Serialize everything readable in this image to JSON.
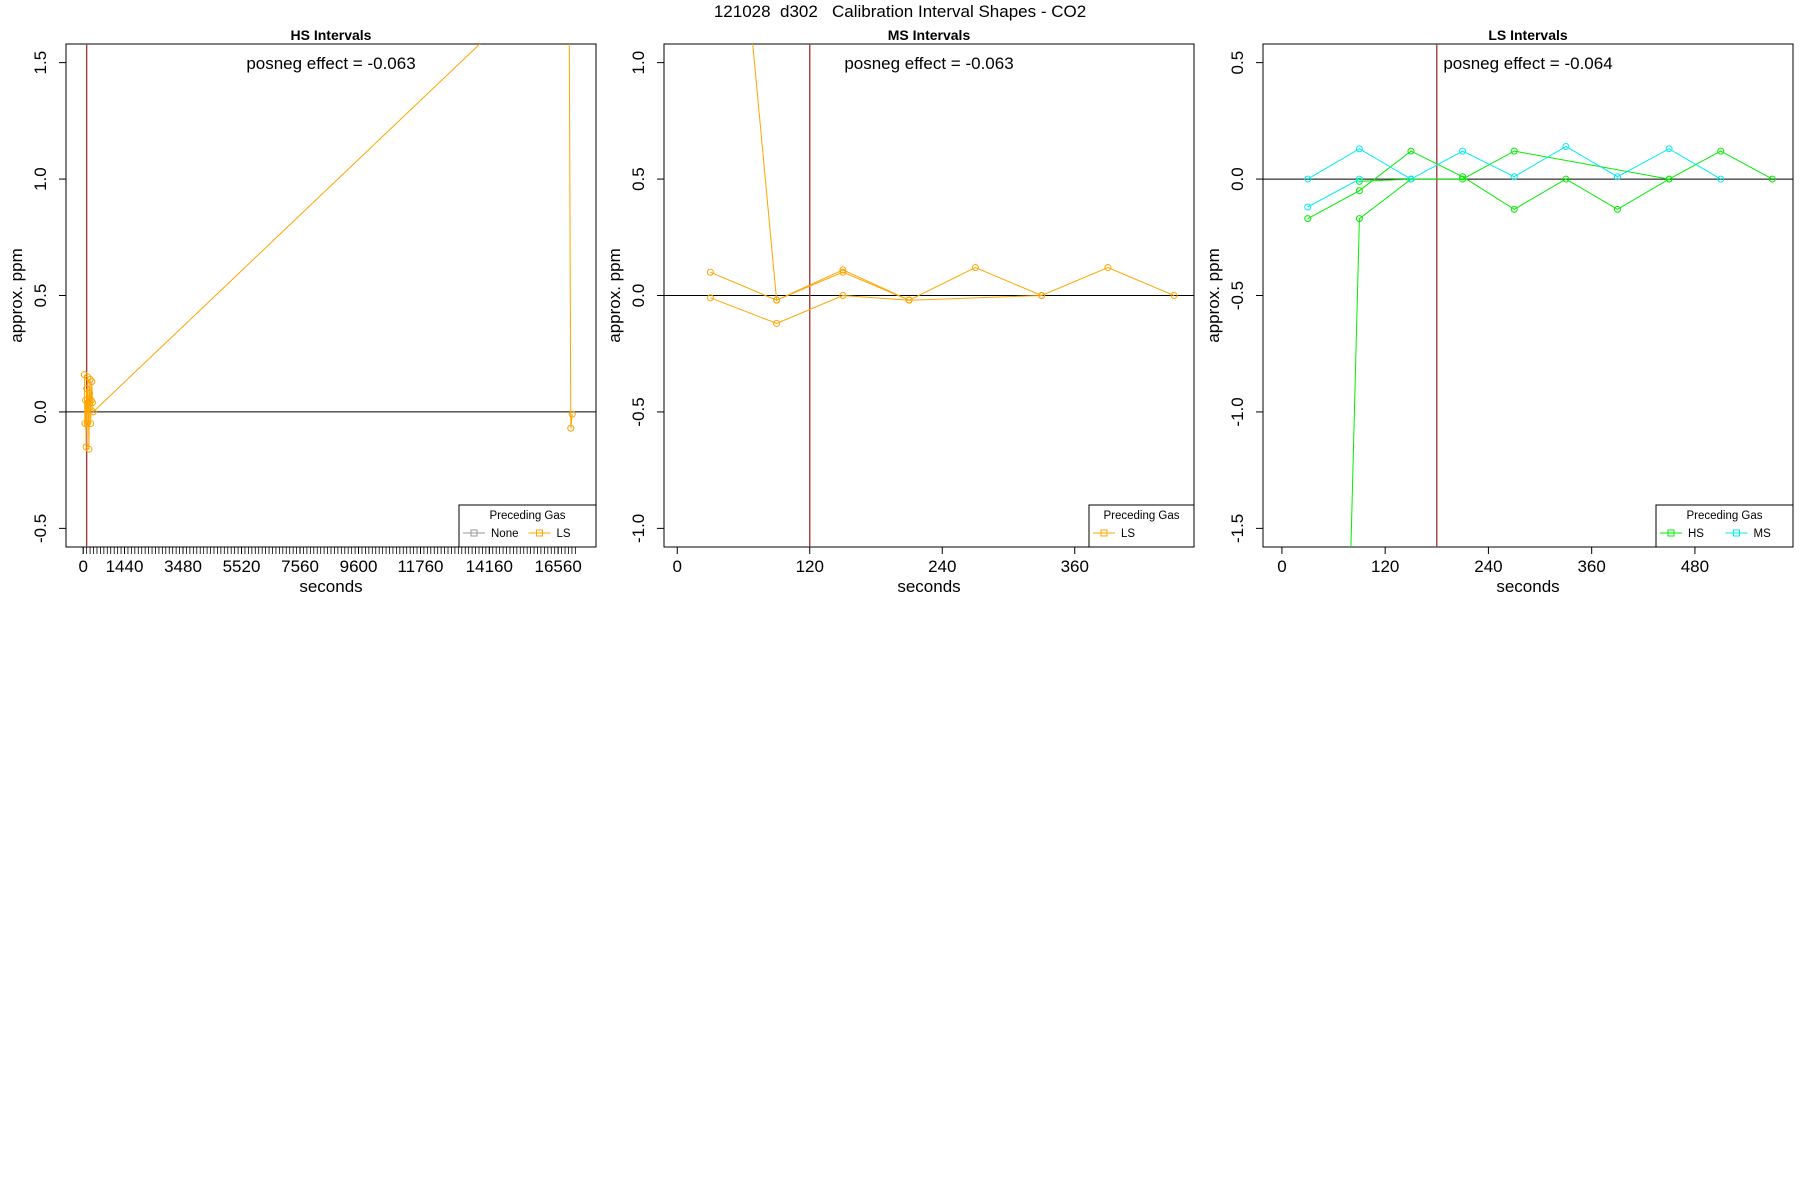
{
  "title": "121028  d302   Calibration Interval Shapes - CO2",
  "colors": {
    "None": "#999999",
    "LS": "#FFA500",
    "HS": "#00EE00",
    "MS": "#00EEEE",
    "vline": "#a0403c"
  },
  "chart_data": [
    {
      "type": "line",
      "title": "HS Intervals",
      "xlabel": "seconds",
      "ylabel": "approx. ppm",
      "xlim": [
        -600,
        17880
      ],
      "ylim": [
        -0.58,
        1.58
      ],
      "xticks": [
        0,
        1440,
        3480,
        5520,
        7560,
        9600,
        11760,
        14160,
        16560
      ],
      "minor_ticks": {
        "start": 0,
        "end": 17160,
        "step": 120
      },
      "yticks": [
        -0.5,
        0.0,
        0.5,
        1.0,
        1.5
      ],
      "ytick_labels": [
        "-0.5",
        "0.0",
        "0.5",
        "1.0",
        "1.5"
      ],
      "vline": 120,
      "hline": 0,
      "annotation": "posneg effect = -0.063",
      "legend": {
        "title": "Preceding Gas",
        "position": "bottom-right",
        "entries": [
          "None",
          "LS"
        ]
      },
      "series": [
        {
          "name": "LS",
          "points": [
            {
              "x": 40,
              "y": 0.16
            },
            {
              "x": 60,
              "y": -0.05
            },
            {
              "x": 80,
              "y": 0.05
            },
            {
              "x": 100,
              "y": -0.15
            },
            {
              "x": 120,
              "y": 0.1
            },
            {
              "x": 140,
              "y": -0.05
            },
            {
              "x": 160,
              "y": 0.15
            },
            {
              "x": 180,
              "y": 0.02
            },
            {
              "x": 200,
              "y": -0.16
            },
            {
              "x": 220,
              "y": 0.08
            },
            {
              "x": 240,
              "y": 0.14
            },
            {
              "x": 260,
              "y": -0.05
            },
            {
              "x": 280,
              "y": 0.05
            },
            {
              "x": 300,
              "y": 0.13
            },
            {
              "x": 320,
              "y": 0.04
            },
            {
              "x": 350,
              "y": 0.0
            },
            {
              "x": 14000,
              "y": 1.6
            },
            {
              "x": 16950,
              "y": 1.6
            },
            {
              "x": 17000,
              "y": -0.07
            },
            {
              "x": 17050,
              "y": -0.01
            }
          ]
        }
      ]
    },
    {
      "type": "line",
      "title": "MS Intervals",
      "xlabel": "seconds",
      "ylabel": "approx. ppm",
      "xlim": [
        -12,
        468
      ],
      "ylim": [
        -1.08,
        1.08
      ],
      "xticks": [
        0,
        120,
        240,
        360
      ],
      "yticks": [
        -1.0,
        -0.5,
        0.0,
        0.5,
        1.0
      ],
      "ytick_labels": [
        "-1.0",
        "-0.5",
        "0.0",
        "0.5",
        "1.0"
      ],
      "vline": 120,
      "hline": 0,
      "annotation": "posneg effect = -0.063",
      "legend": {
        "title": "Preceding Gas",
        "position": "bottom-right",
        "entries": [
          "LS"
        ]
      },
      "series": [
        {
          "name": "LS",
          "points": [
            {
              "x": 68,
              "y": 1.1
            },
            {
              "x": 90,
              "y": -0.02
            },
            {
              "x": 150,
              "y": 0.1
            },
            {
              "x": 210,
              "y": -0.02
            },
            {
              "x": 270,
              "y": 0.12
            },
            {
              "x": 330,
              "y": 0.0
            },
            {
              "x": 390,
              "y": 0.12
            },
            {
              "x": 450,
              "y": 0.0
            }
          ]
        },
        {
          "name": "LS",
          "points": [
            {
              "x": 30,
              "y": 0.1
            },
            {
              "x": 90,
              "y": -0.02
            },
            {
              "x": 150,
              "y": 0.11
            },
            {
              "x": 210,
              "y": -0.02
            }
          ]
        },
        {
          "name": "LS",
          "points": [
            {
              "x": 30,
              "y": -0.01
            },
            {
              "x": 90,
              "y": -0.12
            },
            {
              "x": 150,
              "y": 0.0
            },
            {
              "x": 210,
              "y": -0.02
            },
            {
              "x": 330,
              "y": 0.0
            }
          ]
        }
      ]
    },
    {
      "type": "line",
      "title": "LS Intervals",
      "xlabel": "seconds",
      "ylabel": "approx. ppm",
      "xlim": [
        -22,
        594
      ],
      "ylim": [
        -1.58,
        0.58
      ],
      "xticks": [
        0,
        120,
        240,
        360,
        480
      ],
      "yticks": [
        -1.5,
        -1.0,
        -0.5,
        0.0,
        0.5
      ],
      "ytick_labels": [
        "-1.5",
        "-1.0",
        "-0.5",
        "0.0",
        "0.5"
      ],
      "vline": 180,
      "hline": 0,
      "annotation": "posneg effect = -0.064",
      "legend": {
        "title": "Preceding Gas",
        "position": "bottom-right",
        "entries": [
          "HS",
          "MS"
        ]
      },
      "series": [
        {
          "name": "HS",
          "points": [
            {
              "x": 80,
              "y": -1.6
            },
            {
              "x": 90,
              "y": -0.17
            },
            {
              "x": 150,
              "y": 0.0
            },
            {
              "x": 210,
              "y": 0.0
            },
            {
              "x": 270,
              "y": 0.12
            },
            {
              "x": 450,
              "y": 0.0
            }
          ]
        },
        {
          "name": "HS",
          "points": [
            {
              "x": 30,
              "y": -0.17
            },
            {
              "x": 90,
              "y": -0.05
            },
            {
              "x": 150,
              "y": 0.12
            },
            {
              "x": 210,
              "y": 0.01
            },
            {
              "x": 270,
              "y": -0.13
            },
            {
              "x": 330,
              "y": 0.0
            },
            {
              "x": 390,
              "y": -0.13
            },
            {
              "x": 450,
              "y": 0.0
            },
            {
              "x": 510,
              "y": 0.12
            },
            {
              "x": 570,
              "y": 0.0
            }
          ]
        },
        {
          "name": "HS",
          "points": [
            {
              "x": 90,
              "y": -0.01
            },
            {
              "x": 150,
              "y": 0.0
            }
          ]
        },
        {
          "name": "MS",
          "points": [
            {
              "x": 30,
              "y": 0.0
            },
            {
              "x": 90,
              "y": 0.13
            },
            {
              "x": 150,
              "y": 0.0
            },
            {
              "x": 210,
              "y": 0.12
            },
            {
              "x": 270,
              "y": 0.01
            },
            {
              "x": 330,
              "y": 0.14
            },
            {
              "x": 390,
              "y": 0.01
            },
            {
              "x": 450,
              "y": 0.13
            },
            {
              "x": 510,
              "y": 0.0
            }
          ]
        },
        {
          "name": "MS",
          "points": [
            {
              "x": 30,
              "y": -0.12
            },
            {
              "x": 90,
              "y": 0.0
            }
          ]
        }
      ]
    }
  ]
}
